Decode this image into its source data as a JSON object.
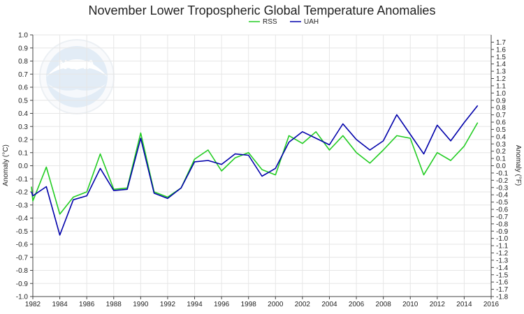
{
  "chart_data": {
    "type": "line",
    "title": "November Lower Tropospheric Global Temperature Anomalies",
    "ylabel_left": "Anomaly (°C)",
    "ylabel_right": "Anomaly (°F)",
    "xlim": [
      1982,
      2016
    ],
    "ylim": [
      -1.0,
      1.0
    ],
    "ylim_right": [
      -1.8,
      1.8
    ],
    "x_ticks": [
      1982,
      1984,
      1986,
      1988,
      1990,
      1992,
      1994,
      1996,
      1998,
      2000,
      2002,
      2004,
      2006,
      2008,
      2010,
      2012,
      2014,
      2016
    ],
    "y_ticks_left": [
      "1.0",
      "0.9",
      "0.8",
      "0.7",
      "0.6",
      "0.5",
      "0.4",
      "0.3",
      "0.2",
      "0.1",
      "0.0",
      "-0.1",
      "-0.2",
      "-0.3",
      "-0.4",
      "-0.5",
      "-0.6",
      "-0.7",
      "-0.8",
      "-0.9",
      "-1.0"
    ],
    "y_ticks_right": [
      "1.7",
      "1.6",
      "1.5",
      "1.4",
      "1.3",
      "1.2",
      "1.1",
      "1.0",
      "0.9",
      "0.8",
      "0.7",
      "0.6",
      "0.5",
      "0.4",
      "0.3",
      "0.2",
      "0.1",
      "0.0",
      "-0.1",
      "-0.2",
      "-0.3",
      "-0.4",
      "-0.5",
      "-0.6",
      "-0.7",
      "-0.8",
      "-0.9",
      "-1.0",
      "-1.1",
      "-1.2",
      "-1.3",
      "-1.4",
      "-1.5",
      "-1.6",
      "-1.7",
      "-1.8"
    ],
    "grid": true,
    "legend_position": "top-center",
    "x": [
      1981,
      1982,
      1983,
      1984,
      1985,
      1986,
      1987,
      1988,
      1989,
      1990,
      1991,
      1992,
      1993,
      1994,
      1995,
      1996,
      1997,
      1998,
      1999,
      2000,
      2001,
      2002,
      2003,
      2004,
      2005,
      2006,
      2007,
      2008,
      2009,
      2010,
      2011,
      2012,
      2013,
      2014,
      2015
    ],
    "series": [
      {
        "name": "RSS",
        "color": "#22cc22",
        "values": [
          -0.16,
          -0.27,
          -0.01,
          -0.37,
          -0.24,
          -0.2,
          0.09,
          -0.18,
          -0.17,
          0.25,
          -0.2,
          -0.24,
          -0.17,
          0.05,
          0.12,
          -0.04,
          0.06,
          0.1,
          -0.03,
          -0.07,
          0.23,
          0.17,
          0.26,
          0.12,
          0.23,
          0.1,
          0.02,
          0.12,
          0.23,
          0.21,
          -0.07,
          0.1,
          0.04,
          0.15,
          0.33
        ]
      },
      {
        "name": "UAH",
        "color": "#0000aa",
        "values": [
          -0.2,
          -0.23,
          -0.16,
          -0.53,
          -0.26,
          -0.23,
          -0.02,
          -0.19,
          -0.18,
          0.21,
          -0.21,
          -0.25,
          -0.17,
          0.03,
          0.04,
          0.01,
          0.09,
          0.08,
          -0.08,
          -0.02,
          0.18,
          0.26,
          0.21,
          0.16,
          0.32,
          0.2,
          0.12,
          0.19,
          0.39,
          0.24,
          0.09,
          0.31,
          0.19,
          0.33,
          0.46
        ]
      }
    ]
  },
  "watermark": {
    "text": "NOAA"
  }
}
